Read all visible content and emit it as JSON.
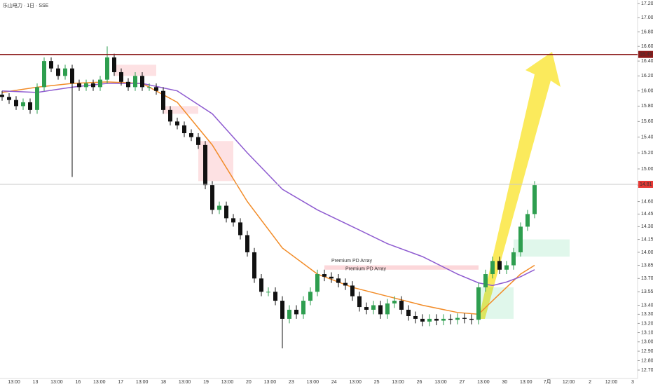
{
  "chart_data": {
    "type": "candlestick",
    "title": "乐山电力 · 1日 · SSE",
    "log_scale": true,
    "ylim": [
      12.7,
      17.2
    ],
    "yticks": [
      {
        "value": 17.2,
        "label": "17.20"
      },
      {
        "value": 17,
        "label": "17.00"
      },
      {
        "value": 16.8,
        "label": "16.80"
      },
      {
        "value": 16.6,
        "label": "16.60"
      },
      {
        "value": 16.4,
        "label": "16.40"
      },
      {
        "value": 16.2,
        "label": "16.20"
      },
      {
        "value": 16,
        "label": "16.00"
      },
      {
        "value": 15.8,
        "label": "15.80"
      },
      {
        "value": 15.6,
        "label": "15.60"
      },
      {
        "value": 15.4,
        "label": "15.40"
      },
      {
        "value": 15.2,
        "label": "15.20"
      },
      {
        "value": 15,
        "label": "15.00"
      },
      {
        "value": 14.8,
        "label": "14.80"
      },
      {
        "value": 14.6,
        "label": "14.60"
      },
      {
        "value": 14.45,
        "label": "14.45"
      },
      {
        "value": 14.3,
        "label": "14.30"
      },
      {
        "value": 14.15,
        "label": "14.15"
      },
      {
        "value": 14,
        "label": "14.00"
      },
      {
        "value": 13.85,
        "label": "13.85"
      },
      {
        "value": 13.7,
        "label": "13.70"
      },
      {
        "value": 13.55,
        "label": "13.55"
      },
      {
        "value": 13.4,
        "label": "13.40"
      },
      {
        "value": 13.3,
        "label": "13.30"
      },
      {
        "value": 13.2,
        "label": "13.20"
      },
      {
        "value": 13.1,
        "label": "13.10"
      },
      {
        "value": 13,
        "label": "13.00"
      },
      {
        "value": 12.9,
        "label": "12.90"
      },
      {
        "value": 12.8,
        "label": "12.80"
      },
      {
        "value": 12.7,
        "label": "12.70"
      }
    ],
    "categories": [
      "13:00",
      "13",
      "13:00",
      "16",
      "13:00",
      "17",
      "13:00",
      "18",
      "13:00",
      "19",
      "13:00",
      "20",
      "13:00",
      "23",
      "13:00",
      "24",
      "13:00",
      "25",
      "13:00",
      "26",
      "13:00",
      "27",
      "13:00",
      "30",
      "13:00",
      "7月",
      "12:00",
      "2",
      "12:00",
      "3"
    ],
    "up_color": "#2e9e4f",
    "down_color": "#111111",
    "candles": [
      [
        15.95,
        16.0,
        15.87,
        15.92
      ],
      [
        15.92,
        15.97,
        15.83,
        15.88
      ],
      [
        15.88,
        15.93,
        15.75,
        15.8
      ],
      [
        15.8,
        15.9,
        15.75,
        15.85
      ],
      [
        15.85,
        15.9,
        15.7,
        15.75
      ],
      [
        15.75,
        16.1,
        15.7,
        16.05
      ],
      [
        16.05,
        16.45,
        16.0,
        16.4
      ],
      [
        16.4,
        16.45,
        16.25,
        16.3
      ],
      [
        16.3,
        16.35,
        16.15,
        16.2
      ],
      [
        16.2,
        16.35,
        16.15,
        16.3
      ],
      [
        16.3,
        16.35,
        14.9,
        16.1
      ],
      [
        16.1,
        16.15,
        16.0,
        16.05
      ],
      [
        16.05,
        16.15,
        16.0,
        16.1
      ],
      [
        16.1,
        16.15,
        16.0,
        16.05
      ],
      [
        16.05,
        16.2,
        16.0,
        16.15
      ],
      [
        16.15,
        16.6,
        16.1,
        16.45
      ],
      [
        16.45,
        16.5,
        16.2,
        16.25
      ],
      [
        16.25,
        16.3,
        16.07,
        16.12
      ],
      [
        16.12,
        16.17,
        16.0,
        16.05
      ],
      [
        16.05,
        16.25,
        16.0,
        16.2
      ],
      [
        16.2,
        16.25,
        16.0,
        16.05
      ],
      [
        16.05,
        16.1,
        16.0,
        16.05
      ],
      [
        16.05,
        16.1,
        15.95,
        16.0
      ],
      [
        16.0,
        16.05,
        15.7,
        15.75
      ],
      [
        15.75,
        15.8,
        15.55,
        15.6
      ],
      [
        15.6,
        15.65,
        15.5,
        15.55
      ],
      [
        15.55,
        15.6,
        15.4,
        15.45
      ],
      [
        15.45,
        15.5,
        15.35,
        15.4
      ],
      [
        15.4,
        15.45,
        15.25,
        15.3
      ],
      [
        15.3,
        15.35,
        14.75,
        14.8
      ],
      [
        14.8,
        14.85,
        14.45,
        14.5
      ],
      [
        14.5,
        14.6,
        14.45,
        14.55
      ],
      [
        14.55,
        14.6,
        14.35,
        14.4
      ],
      [
        14.4,
        14.45,
        14.3,
        14.35
      ],
      [
        14.35,
        14.4,
        14.15,
        14.2
      ],
      [
        14.2,
        14.25,
        13.95,
        14.0
      ],
      [
        14.0,
        14.05,
        13.65,
        13.7
      ],
      [
        13.7,
        13.75,
        13.5,
        13.55
      ],
      [
        13.55,
        13.6,
        13.5,
        13.55
      ],
      [
        13.55,
        13.6,
        13.4,
        13.45
      ],
      [
        13.45,
        13.5,
        12.93,
        13.25
      ],
      [
        13.25,
        13.4,
        13.2,
        13.35
      ],
      [
        13.35,
        13.4,
        13.25,
        13.3
      ],
      [
        13.3,
        13.5,
        13.25,
        13.45
      ],
      [
        13.45,
        13.6,
        13.4,
        13.55
      ],
      [
        13.55,
        13.8,
        13.5,
        13.75
      ],
      [
        13.75,
        13.8,
        13.67,
        13.72
      ],
      [
        13.72,
        13.77,
        13.65,
        13.7
      ],
      [
        13.7,
        13.75,
        13.6,
        13.65
      ],
      [
        13.65,
        13.7,
        13.57,
        13.62
      ],
      [
        13.62,
        13.67,
        13.45,
        13.5
      ],
      [
        13.5,
        13.55,
        13.33,
        13.38
      ],
      [
        13.38,
        13.43,
        13.3,
        13.35
      ],
      [
        13.35,
        13.45,
        13.3,
        13.4
      ],
      [
        13.4,
        13.45,
        13.25,
        13.3
      ],
      [
        13.3,
        13.47,
        13.25,
        13.42
      ],
      [
        13.42,
        13.5,
        13.37,
        13.45
      ],
      [
        13.45,
        13.5,
        13.3,
        13.35
      ],
      [
        13.35,
        13.4,
        13.23,
        13.28
      ],
      [
        13.28,
        13.33,
        13.2,
        13.25
      ],
      [
        13.25,
        13.3,
        13.17,
        13.22
      ],
      [
        13.22,
        13.3,
        13.17,
        13.25
      ],
      [
        13.25,
        13.3,
        13.18,
        13.23
      ],
      [
        13.23,
        13.3,
        13.18,
        13.25
      ],
      [
        13.25,
        13.3,
        13.19,
        13.24
      ],
      [
        13.24,
        13.31,
        13.19,
        13.26
      ],
      [
        13.26,
        13.31,
        13.2,
        13.25
      ],
      [
        13.25,
        13.3,
        13.19,
        13.24
      ],
      [
        13.24,
        13.65,
        13.19,
        13.6
      ],
      [
        13.6,
        13.8,
        13.55,
        13.75
      ],
      [
        13.75,
        13.95,
        13.7,
        13.9
      ],
      [
        13.9,
        13.95,
        13.75,
        13.8
      ],
      [
        13.8,
        13.9,
        13.75,
        13.85
      ],
      [
        13.85,
        14.05,
        13.8,
        14.0
      ],
      [
        14.0,
        14.35,
        13.95,
        14.3
      ],
      [
        14.3,
        14.5,
        14.25,
        14.45
      ],
      [
        14.45,
        14.85,
        14.4,
        14.8
      ]
    ],
    "series": [
      {
        "color": "#f28c28",
        "x": [
          0,
          5,
          10,
          15,
          20,
          25,
          30,
          35,
          40,
          45,
          50,
          55,
          60,
          65,
          68,
          70,
          72,
          74,
          76
        ],
        "values": [
          15.98,
          16.05,
          16.1,
          16.12,
          16.1,
          15.85,
          15.3,
          14.6,
          14.05,
          13.75,
          13.6,
          13.5,
          13.4,
          13.32,
          13.3,
          13.45,
          13.6,
          13.75,
          13.85
        ]
      },
      {
        "color": "#8e5bd0",
        "x": [
          0,
          5,
          10,
          15,
          20,
          25,
          30,
          35,
          40,
          45,
          50,
          55,
          60,
          65,
          68,
          70,
          72,
          74,
          76
        ],
        "values": [
          16.0,
          15.98,
          16.05,
          16.1,
          16.1,
          16.0,
          15.7,
          15.2,
          14.75,
          14.5,
          14.3,
          14.1,
          13.95,
          13.75,
          13.65,
          13.62,
          13.66,
          13.72,
          13.8
        ]
      }
    ],
    "zones": [
      {
        "ylim": [
          16.2,
          16.35
        ],
        "x": [
          16,
          22
        ],
        "color": "rgba(242,54,69,0.15)"
      },
      {
        "ylim": [
          15.7,
          15.8
        ],
        "x": [
          23,
          28
        ],
        "color": "rgba(242,54,69,0.15)"
      },
      {
        "ylim": [
          14.85,
          15.35
        ],
        "x": [
          28,
          33
        ],
        "color": "rgba(242,54,69,0.15)"
      },
      {
        "ylim": [
          13.8,
          13.85
        ],
        "x": [
          46,
          68
        ],
        "color": "rgba(242,54,69,0.2)"
      },
      {
        "ylim": [
          13.25,
          13.6
        ],
        "x": [
          68,
          73
        ],
        "color": "rgba(46,200,120,0.15)"
      },
      {
        "ylim": [
          13.95,
          14.15
        ],
        "x": [
          73,
          81
        ],
        "color": "rgba(46,200,120,0.15)"
      }
    ],
    "zone_labels": [
      {
        "text": "Premium PD Array",
        "x": 47,
        "price": 13.9
      },
      {
        "text": "Premium PD Array",
        "x": 49,
        "price": 13.81
      }
    ],
    "price_lines": [
      {
        "value": 16.49,
        "color": "#8b1a1a"
      },
      {
        "value": 14.81,
        "color": "#c8c8c8",
        "label_color": "#e53935"
      }
    ]
  }
}
